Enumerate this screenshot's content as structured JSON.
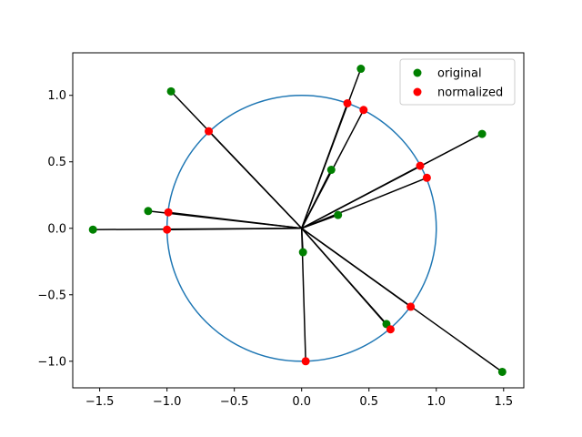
{
  "chart_data": {
    "type": "scatter",
    "title": "",
    "xlabel": "",
    "ylabel": "",
    "xlim": [
      -1.7,
      1.65
    ],
    "ylim": [
      -1.2,
      1.32
    ],
    "xticks": [
      -1.5,
      -1.0,
      -0.5,
      0.0,
      0.5,
      1.0,
      1.5
    ],
    "yticks": [
      -1.0,
      -0.5,
      0.0,
      0.5,
      1.0
    ],
    "xtick_labels": [
      "−1.5",
      "−1.0",
      "−0.5",
      "0.0",
      "0.5",
      "1.0",
      "1.5"
    ],
    "ytick_labels": [
      "−1.0",
      "−0.5",
      "0.0",
      "0.5",
      "1.0"
    ],
    "grid": false,
    "legend": {
      "placement": "top-right",
      "entries": [
        {
          "label": "original",
          "color": "#008000"
        },
        {
          "label": "normalized",
          "color": "#ff0000"
        }
      ]
    },
    "circle": {
      "center": [
        0,
        0
      ],
      "radius": 1.0,
      "color": "#1f77b4"
    },
    "line_color": "#000000",
    "series": [
      {
        "name": "original",
        "color": "#008000",
        "points": [
          [
            -0.97,
            1.03
          ],
          [
            0.44,
            1.2
          ],
          [
            1.34,
            0.71
          ],
          [
            0.22,
            0.44
          ],
          [
            0.27,
            0.1
          ],
          [
            -1.14,
            0.13
          ],
          [
            -1.55,
            -0.01
          ],
          [
            0.01,
            -0.18
          ],
          [
            0.63,
            -0.72
          ],
          [
            1.49,
            -1.08
          ]
        ]
      },
      {
        "name": "normalized",
        "color": "#ff0000",
        "points": [
          [
            -0.69,
            0.73
          ],
          [
            0.34,
            0.94
          ],
          [
            0.46,
            0.89
          ],
          [
            0.88,
            0.47
          ],
          [
            0.93,
            0.38
          ],
          [
            -0.99,
            0.12
          ],
          [
            -1.0,
            -0.01
          ],
          [
            0.03,
            -1.0
          ],
          [
            0.66,
            -0.76
          ],
          [
            0.81,
            -0.59
          ]
        ]
      }
    ]
  }
}
